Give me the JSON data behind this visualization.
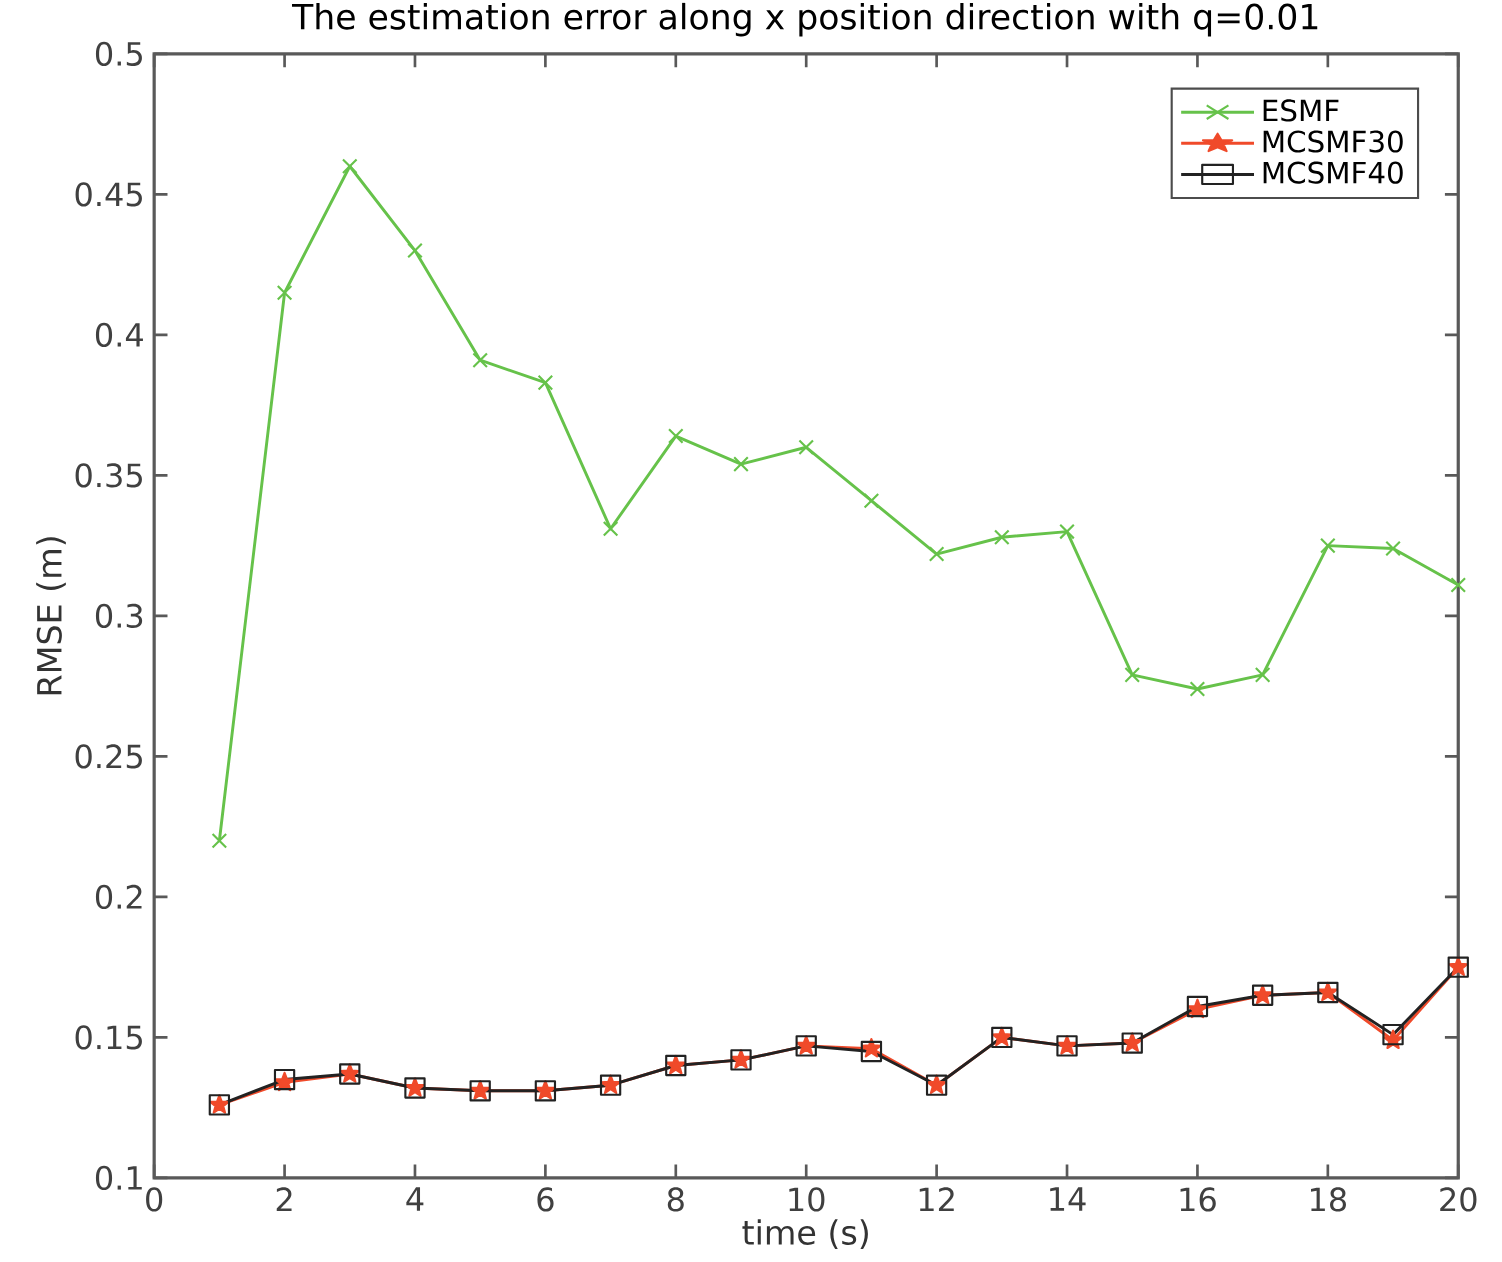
{
  "chart_data": {
    "type": "line",
    "title": "The estimation error along x position direction with q=0.01",
    "xlabel": "time (s)",
    "ylabel": "RMSE (m)",
    "x": [
      1,
      2,
      3,
      4,
      5,
      6,
      7,
      8,
      9,
      10,
      11,
      12,
      13,
      14,
      15,
      16,
      17,
      18,
      19,
      20
    ],
    "series": [
      {
        "name": "ESMF",
        "color": "#66c24a",
        "marker": "cross",
        "values": [
          0.22,
          0.415,
          0.46,
          0.43,
          0.391,
          0.383,
          0.331,
          0.364,
          0.354,
          0.36,
          0.341,
          0.322,
          0.328,
          0.33,
          0.279,
          0.274,
          0.279,
          0.325,
          0.324,
          0.311
        ]
      },
      {
        "name": "MCSMF30",
        "color": "#f04a2a",
        "marker": "star",
        "values": [
          0.126,
          0.134,
          0.137,
          0.132,
          0.131,
          0.131,
          0.133,
          0.14,
          0.142,
          0.147,
          0.146,
          0.133,
          0.15,
          0.147,
          0.148,
          0.16,
          0.165,
          0.166,
          0.149,
          0.175
        ]
      },
      {
        "name": "MCSMF40",
        "color": "#222222",
        "marker": "square",
        "values": [
          0.126,
          0.135,
          0.137,
          0.132,
          0.131,
          0.131,
          0.133,
          0.14,
          0.142,
          0.147,
          0.145,
          0.133,
          0.15,
          0.147,
          0.148,
          0.161,
          0.165,
          0.166,
          0.151,
          0.175
        ]
      }
    ],
    "xlim": [
      0,
      20
    ],
    "ylim": [
      0.1,
      0.5
    ],
    "xticks": [
      0,
      2,
      4,
      6,
      8,
      10,
      12,
      14,
      16,
      18,
      20
    ],
    "yticks": [
      0.1,
      0.15,
      0.2,
      0.25,
      0.3,
      0.35,
      0.4,
      0.45,
      0.5
    ],
    "legend": "top right",
    "grid": false,
    "line_style": "solid"
  }
}
